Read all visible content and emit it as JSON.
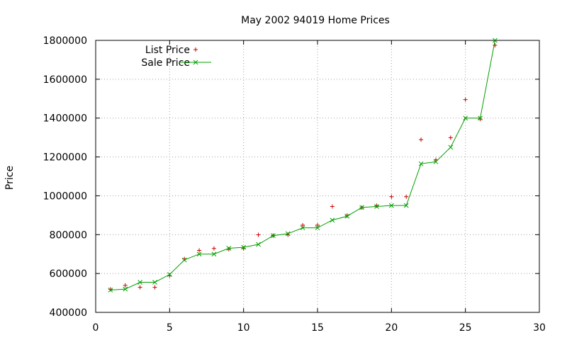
{
  "chart_data": {
    "type": "scatter",
    "title": "May 2002 94019 Home Prices",
    "xlabel": "",
    "ylabel": "Price",
    "xlim": [
      0,
      30
    ],
    "ylim": [
      400000,
      1800000
    ],
    "xticks": [
      0,
      5,
      10,
      15,
      20,
      25,
      30
    ],
    "yticks": [
      400000,
      600000,
      800000,
      1000000,
      1200000,
      1400000,
      1600000,
      1800000
    ],
    "grid": true,
    "legend_position": "top-left",
    "series": [
      {
        "name": "List Price",
        "style": "points",
        "marker": "plus",
        "color": "#cc0000",
        "x": [
          1,
          2,
          3,
          4,
          5,
          6,
          7,
          8,
          9,
          10,
          11,
          12,
          13,
          14,
          15,
          16,
          17,
          18,
          19,
          20,
          21,
          22,
          23,
          24,
          25,
          26,
          27
        ],
        "y": [
          519000,
          539000,
          529000,
          529000,
          589000,
          675000,
          719000,
          729000,
          725000,
          729000,
          799000,
          795000,
          799000,
          849000,
          849000,
          945000,
          899000,
          939000,
          949000,
          995000,
          995000,
          1289000,
          1185000,
          1299000,
          1495000,
          1395000,
          1775000
        ]
      },
      {
        "name": "Sale Price",
        "style": "linespoints",
        "marker": "x",
        "color": "#00a000",
        "x": [
          1,
          2,
          3,
          4,
          5,
          6,
          7,
          8,
          9,
          10,
          11,
          12,
          13,
          14,
          15,
          16,
          17,
          18,
          19,
          20,
          21,
          22,
          23,
          24,
          25,
          26,
          27
        ],
        "y": [
          515000,
          520000,
          555000,
          555000,
          595000,
          670000,
          700000,
          700000,
          730000,
          735000,
          750000,
          795000,
          805000,
          835000,
          835000,
          875000,
          895000,
          940000,
          945000,
          950000,
          950000,
          1165000,
          1175000,
          1250000,
          1400000,
          1400000,
          1800000
        ]
      }
    ]
  }
}
